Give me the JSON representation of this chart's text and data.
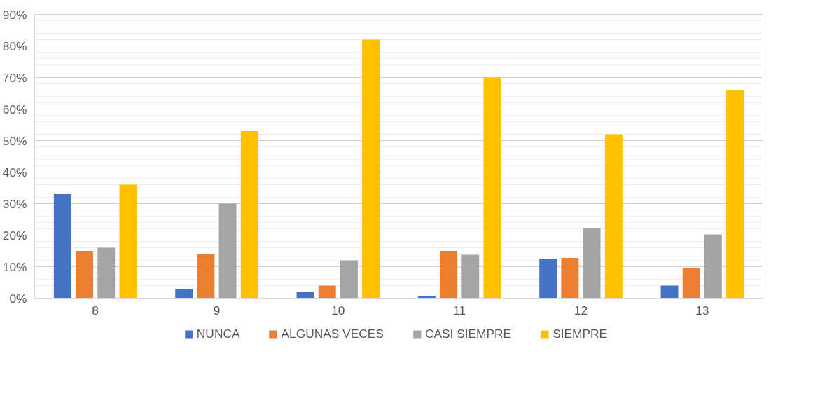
{
  "chart_data": {
    "type": "bar",
    "categories": [
      "8",
      "9",
      "10",
      "11",
      "12",
      "13"
    ],
    "series": [
      {
        "name": "NUNCA",
        "color": "#4472c4",
        "values": [
          33,
          3,
          2,
          0.8,
          12.5,
          4
        ]
      },
      {
        "name": "ALGUNAS VECES",
        "color": "#ed7d31",
        "values": [
          15,
          14,
          4,
          15,
          12.8,
          9.5
        ]
      },
      {
        "name": "CASI SIEMPRE",
        "color": "#a5a5a5",
        "values": [
          16,
          30,
          12,
          13.8,
          22.2,
          20.2
        ]
      },
      {
        "name": "SIEMPRE",
        "color": "#ffc000",
        "values": [
          36,
          53,
          82,
          70,
          52,
          66
        ]
      }
    ],
    "ylim": [
      0,
      90
    ],
    "yticks": [
      {
        "value": 0,
        "label": "0%"
      },
      {
        "value": 10,
        "label": "10%"
      },
      {
        "value": 20,
        "label": "20%"
      },
      {
        "value": 30,
        "label": "30%"
      },
      {
        "value": 40,
        "label": "40%"
      },
      {
        "value": 50,
        "label": "50%"
      },
      {
        "value": 60,
        "label": "60%"
      },
      {
        "value": 70,
        "label": "70%"
      },
      {
        "value": 80,
        "label": "80%"
      },
      {
        "value": 90,
        "label": "90%"
      }
    ],
    "grid": "y",
    "legend": "bottom"
  }
}
